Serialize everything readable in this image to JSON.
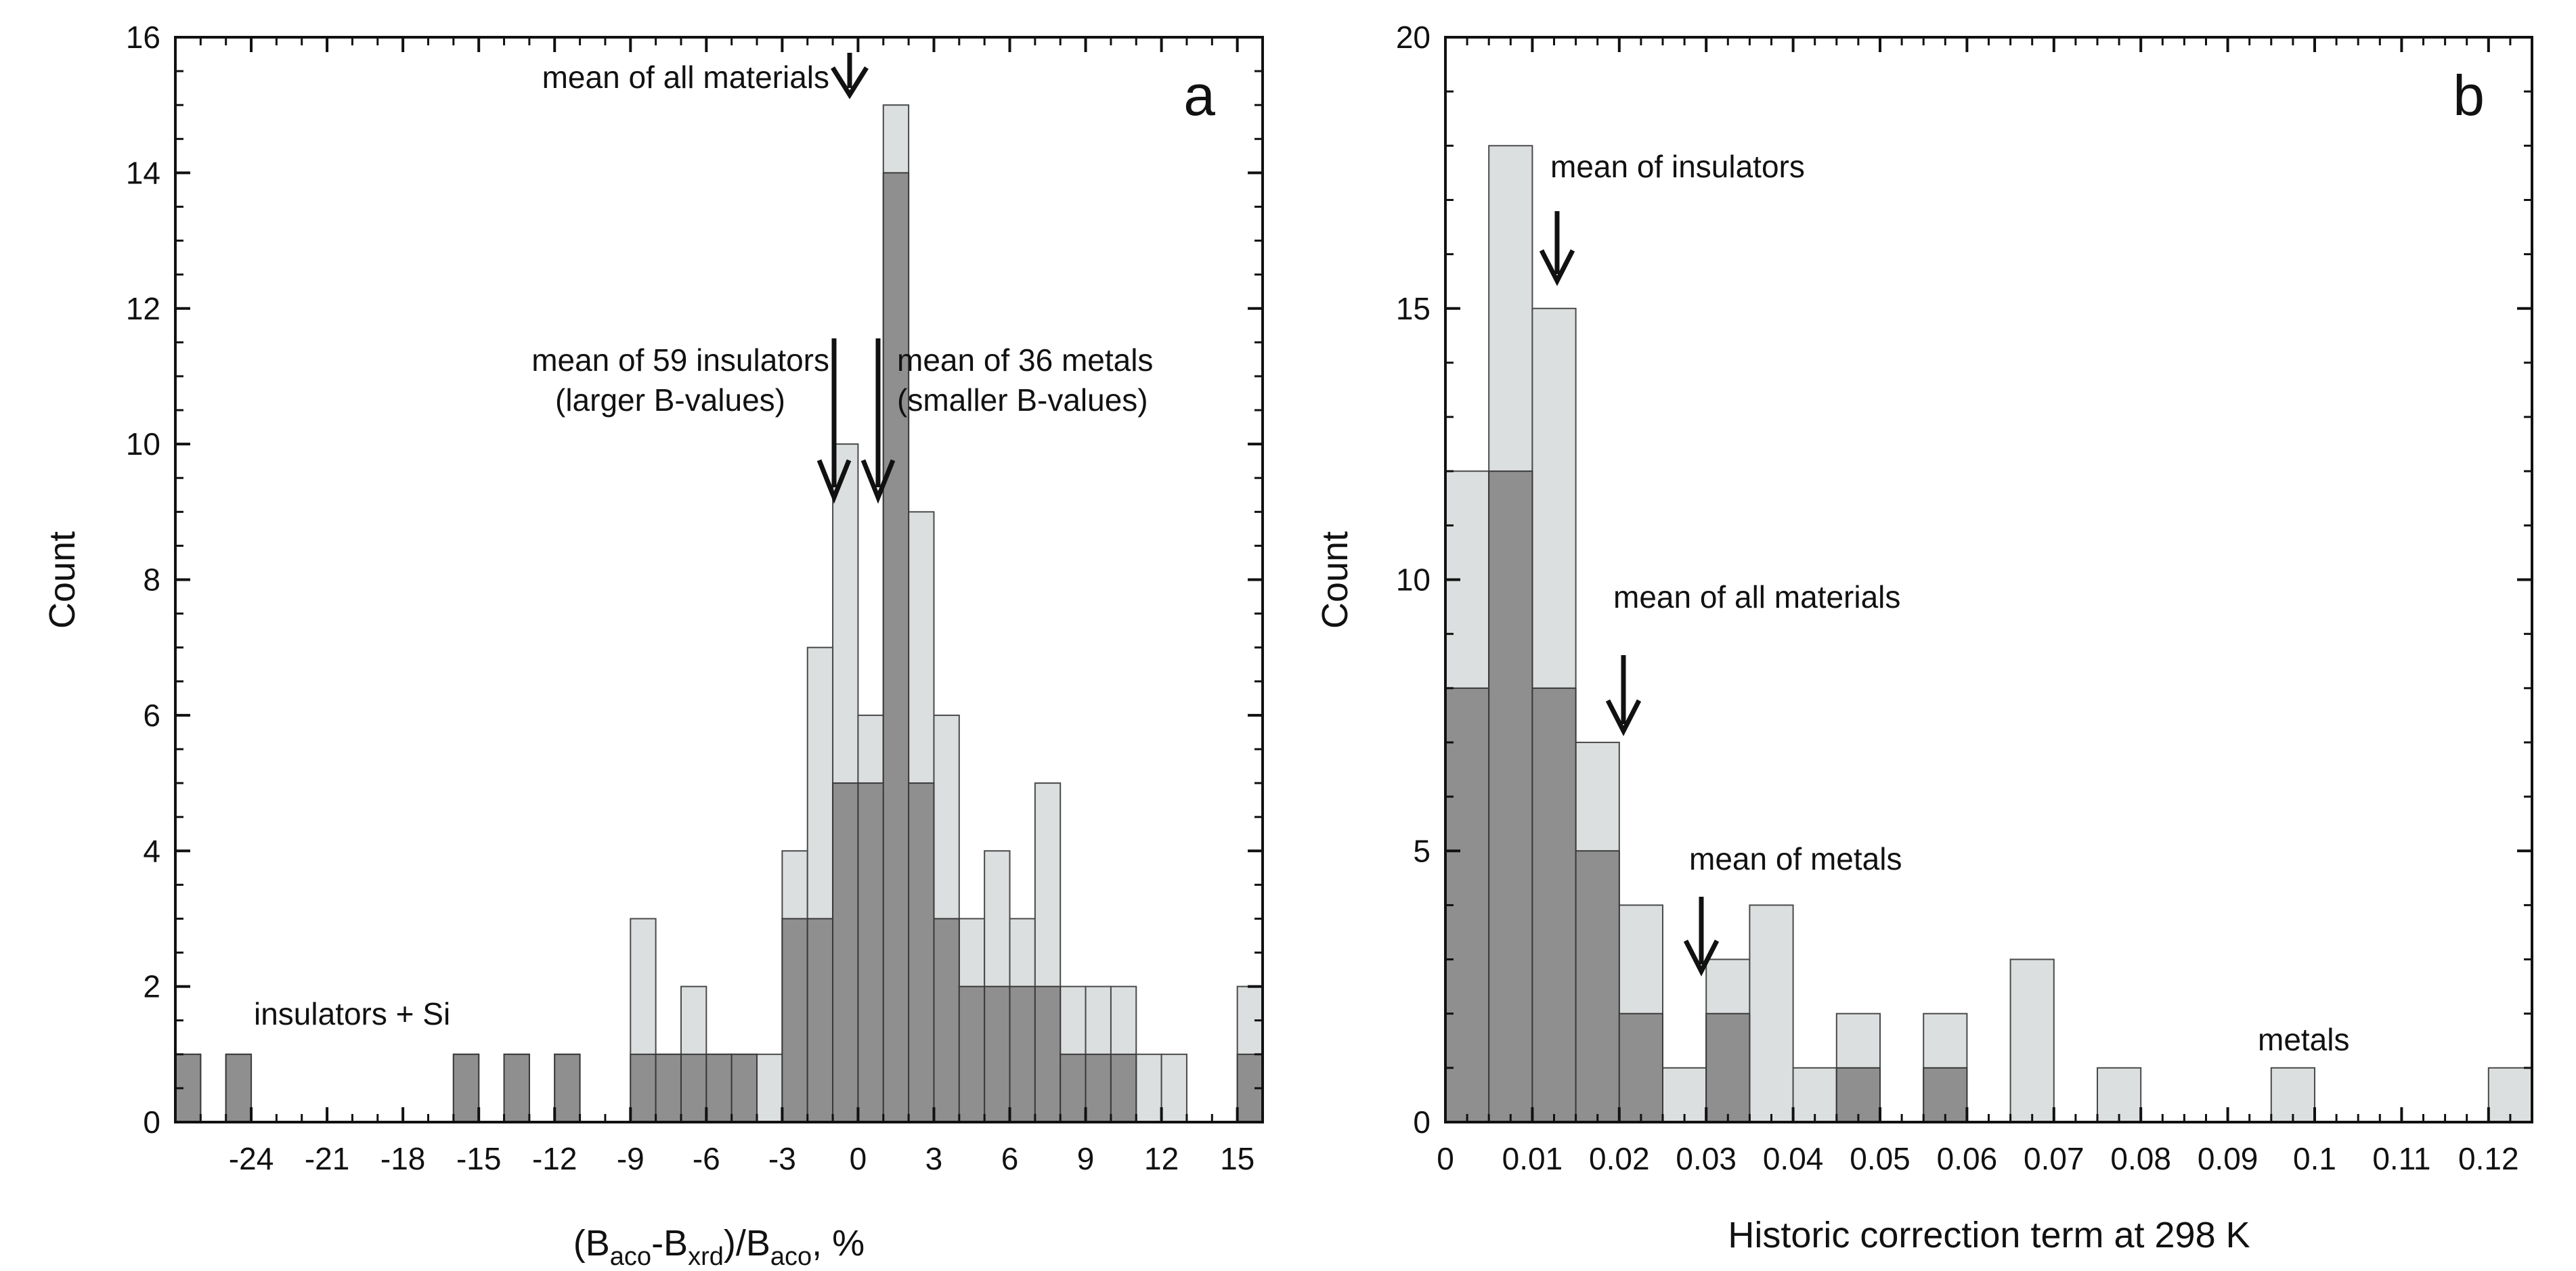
{
  "chart_data": [
    {
      "panel": "a",
      "type": "bar",
      "layout": "overlaid histogram",
      "xlabel": "(Baco-Bxrd)/Baco, %",
      "xlabel_parts": {
        "pre": "(B",
        "sub1": "aco",
        "mid": "-B",
        "sub2": "xrd",
        "mid2": ")/B",
        "sub3": "aco",
        "post": ", %"
      },
      "ylabel": "Count",
      "xlim": [
        -27,
        16
      ],
      "ylim": [
        0,
        16
      ],
      "xticks": [
        -24,
        -21,
        -18,
        -15,
        -12,
        -9,
        -6,
        -3,
        0,
        3,
        6,
        9,
        12,
        15
      ],
      "yticks": [
        0,
        2,
        4,
        6,
        8,
        10,
        12,
        14,
        16
      ],
      "bin_width": 1,
      "series": [
        {
          "name": "all materials",
          "color": "#dcdfdf",
          "bins": [
            [
              -27,
              1
            ],
            [
              -25,
              1
            ],
            [
              -16,
              1
            ],
            [
              -14,
              1
            ],
            [
              -12,
              1
            ],
            [
              -9,
              3
            ],
            [
              -8,
              1
            ],
            [
              -7,
              2
            ],
            [
              -6,
              1
            ],
            [
              -5,
              1
            ],
            [
              -4,
              1
            ],
            [
              -3,
              4
            ],
            [
              -2,
              7
            ],
            [
              -1,
              10
            ],
            [
              0,
              6
            ],
            [
              1,
              15
            ],
            [
              2,
              9
            ],
            [
              3,
              6
            ],
            [
              4,
              3
            ],
            [
              5,
              4
            ],
            [
              6,
              3
            ],
            [
              7,
              5
            ],
            [
              8,
              2
            ],
            [
              9,
              2
            ],
            [
              10,
              2
            ],
            [
              11,
              1
            ],
            [
              12,
              1
            ],
            [
              15,
              2
            ]
          ]
        },
        {
          "name": "insulators + Si",
          "color": "#8f8f8f",
          "bins": [
            [
              -27,
              1
            ],
            [
              -25,
              1
            ],
            [
              -16,
              1
            ],
            [
              -14,
              1
            ],
            [
              -12,
              1
            ],
            [
              -9,
              1
            ],
            [
              -8,
              1
            ],
            [
              -7,
              1
            ],
            [
              -6,
              1
            ],
            [
              -5,
              1
            ],
            [
              -3,
              3
            ],
            [
              -2,
              3
            ],
            [
              -1,
              5
            ],
            [
              0,
              5
            ],
            [
              1,
              14
            ],
            [
              2,
              5
            ],
            [
              3,
              3
            ],
            [
              4,
              2
            ],
            [
              5,
              2
            ],
            [
              6,
              2
            ],
            [
              7,
              2
            ],
            [
              8,
              1
            ],
            [
              9,
              1
            ],
            [
              10,
              1
            ],
            [
              15,
              1
            ]
          ]
        }
      ],
      "annotations": [
        {
          "text": "mean of all materials",
          "x": 0.5,
          "y": 16
        },
        {
          "text": "mean of 59 insulators",
          "text2": "(larger B-values)",
          "x": -0.7,
          "y": 9.4
        },
        {
          "text": "mean of 36 metals",
          "text2": "(smaller B-values)",
          "x": 1.2,
          "y": 9.4
        },
        {
          "text": "insulators + Si",
          "x": -20,
          "y": 2
        }
      ],
      "panel_label": "a"
    },
    {
      "panel": "b",
      "type": "bar",
      "layout": "overlaid histogram",
      "xlabel": "Historic correction term at 298 K",
      "ylabel": "Count",
      "xlim": [
        0,
        0.125
      ],
      "ylim": [
        0,
        20
      ],
      "xticks": [
        0,
        0.01,
        0.02,
        0.03,
        0.04,
        0.05,
        0.06,
        0.07,
        0.08,
        0.09,
        0.1,
        0.11,
        0.12
      ],
      "xtick_labels": [
        "0",
        "0.01",
        "0.02",
        "0.03",
        "0.04",
        "0.05",
        "0.06",
        "0.07",
        "0.08",
        "0.09",
        "0.1",
        "0.11",
        "0.12"
      ],
      "yticks": [
        0,
        5,
        10,
        15,
        20
      ],
      "bin_width": 0.005,
      "series": [
        {
          "name": "all materials",
          "color": "#dcdfdf",
          "bins": [
            [
              0,
              12
            ],
            [
              0.005,
              18
            ],
            [
              0.01,
              15
            ],
            [
              0.015,
              7
            ],
            [
              0.02,
              4
            ],
            [
              0.025,
              1
            ],
            [
              0.03,
              3
            ],
            [
              0.035,
              4
            ],
            [
              0.04,
              1
            ],
            [
              0.045,
              2
            ],
            [
              0.055,
              2
            ],
            [
              0.065,
              3
            ],
            [
              0.075,
              1
            ],
            [
              0.095,
              1
            ],
            [
              0.12,
              1
            ]
          ]
        },
        {
          "name": "insulators",
          "color": "#8f8f8f",
          "bins": [
            [
              0,
              8
            ],
            [
              0.005,
              12
            ],
            [
              0.01,
              8
            ],
            [
              0.015,
              5
            ],
            [
              0.02,
              2
            ],
            [
              0.03,
              2
            ],
            [
              0.045,
              1
            ],
            [
              0.055,
              1
            ]
          ]
        }
      ],
      "annotations": [
        {
          "text": "mean of insulators",
          "x": 0.0128,
          "y": 15.2
        },
        {
          "text": "mean of all materials",
          "x": 0.0207,
          "y": 7.0
        },
        {
          "text": "mean of metals",
          "x": 0.0298,
          "y": 2.8
        },
        {
          "text": "metals",
          "x": 0.1,
          "y": 1.5
        }
      ],
      "panel_label": "b"
    }
  ]
}
